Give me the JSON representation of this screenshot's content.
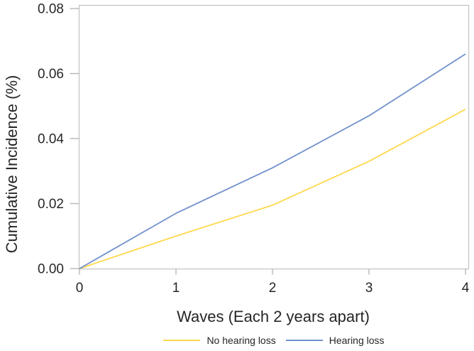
{
  "figure": {
    "background_color": "#FFFFFF",
    "frame_color": "#C6C6C6",
    "tick_color": "#B2B2B2",
    "text_color": "#262626"
  },
  "chart_data": {
    "type": "line",
    "title": "",
    "xlabel": "Waves (Each 2 years apart)",
    "ylabel": "Cumulative Incidence (%)",
    "x": [
      0,
      1,
      2,
      3,
      4
    ],
    "xticks": [
      "0",
      "1",
      "2",
      "3",
      "4"
    ],
    "yticks": [
      "0.00",
      "0.02",
      "0.04",
      "0.06",
      "0.08"
    ],
    "xlim": [
      0,
      4
    ],
    "ylim": [
      0,
      0.08
    ],
    "grid": false,
    "legend_position": "bottom-center",
    "series": [
      {
        "name": "No hearing loss",
        "color": "#FFD84D",
        "values": [
          0.0,
          0.01,
          0.0195,
          0.033,
          0.049
        ]
      },
      {
        "name": "Hearing loss",
        "color": "#7191CD",
        "values": [
          0.0,
          0.017,
          0.031,
          0.047,
          0.066
        ]
      }
    ]
  }
}
